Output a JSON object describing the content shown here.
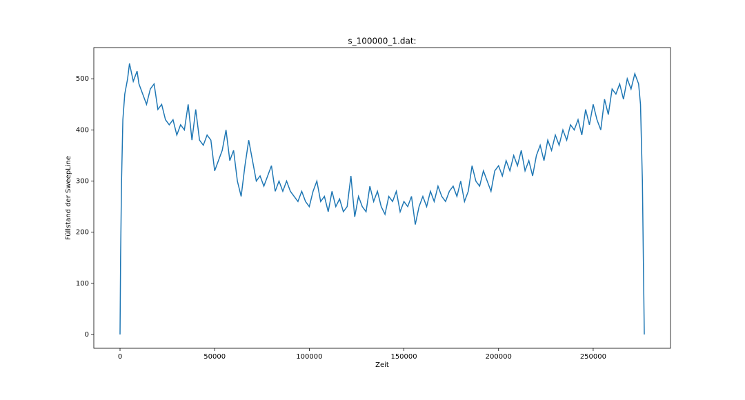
{
  "chart_data": {
    "type": "line",
    "title": "s_100000_1.dat:",
    "xlabel": "Zeit",
    "ylabel": "Füllstand der SweepLine",
    "x": [
      0,
      300,
      800,
      1500,
      2500,
      4000,
      5000,
      7000,
      9000,
      10000,
      12000,
      14000,
      16000,
      18000,
      20000,
      22000,
      24000,
      26000,
      28000,
      30000,
      32000,
      34000,
      36000,
      38000,
      40000,
      42000,
      44000,
      46000,
      48000,
      50000,
      52000,
      54000,
      56000,
      58000,
      60000,
      62000,
      64000,
      66000,
      68000,
      70000,
      72000,
      74000,
      76000,
      78000,
      80000,
      82000,
      84000,
      86000,
      88000,
      90000,
      92000,
      94000,
      96000,
      98000,
      100000,
      102000,
      104000,
      106000,
      108000,
      110000,
      112000,
      114000,
      116000,
      118000,
      120000,
      122000,
      124000,
      126000,
      128000,
      130000,
      132000,
      134000,
      136000,
      138000,
      140000,
      142000,
      144000,
      146000,
      148000,
      150000,
      152000,
      154000,
      156000,
      158000,
      160000,
      162000,
      164000,
      166000,
      168000,
      170000,
      172000,
      174000,
      176000,
      178000,
      180000,
      182000,
      184000,
      186000,
      188000,
      190000,
      192000,
      194000,
      196000,
      198000,
      200000,
      202000,
      204000,
      206000,
      208000,
      210000,
      212000,
      214000,
      216000,
      218000,
      220000,
      222000,
      224000,
      226000,
      228000,
      230000,
      232000,
      234000,
      236000,
      238000,
      240000,
      242000,
      244000,
      246000,
      248000,
      250000,
      252000,
      254000,
      256000,
      258000,
      260000,
      262000,
      264000,
      266000,
      268000,
      270000,
      272000,
      274000,
      275000,
      276000,
      277000
    ],
    "series": [
      {
        "name": "s_100000_1.dat",
        "color": "#1f77b4",
        "values": [
          0,
          150,
          300,
          420,
          470,
          500,
          530,
          495,
          515,
          490,
          470,
          450,
          480,
          490,
          440,
          450,
          420,
          410,
          420,
          390,
          410,
          400,
          450,
          380,
          440,
          380,
          370,
          390,
          380,
          320,
          340,
          360,
          400,
          340,
          360,
          300,
          270,
          330,
          380,
          340,
          300,
          310,
          290,
          310,
          330,
          280,
          300,
          280,
          300,
          280,
          270,
          260,
          280,
          260,
          250,
          280,
          300,
          260,
          270,
          240,
          280,
          250,
          265,
          240,
          250,
          310,
          230,
          270,
          250,
          240,
          290,
          260,
          280,
          250,
          235,
          270,
          260,
          280,
          240,
          260,
          250,
          270,
          215,
          250,
          270,
          250,
          280,
          260,
          290,
          270,
          260,
          280,
          290,
          270,
          300,
          260,
          280,
          330,
          300,
          290,
          320,
          300,
          280,
          320,
          330,
          310,
          340,
          320,
          350,
          330,
          360,
          320,
          340,
          310,
          350,
          370,
          340,
          380,
          360,
          390,
          370,
          400,
          380,
          410,
          400,
          420,
          390,
          440,
          410,
          450,
          420,
          400,
          460,
          430,
          480,
          470,
          490,
          460,
          500,
          480,
          510,
          490,
          450,
          300,
          0
        ]
      }
    ],
    "xlim": [
      -13850,
      290850
    ],
    "ylim": [
      -27,
      561
    ],
    "xticks": [
      0,
      50000,
      100000,
      150000,
      200000,
      250000
    ],
    "yticks": [
      0,
      100,
      200,
      300,
      400,
      500
    ]
  }
}
